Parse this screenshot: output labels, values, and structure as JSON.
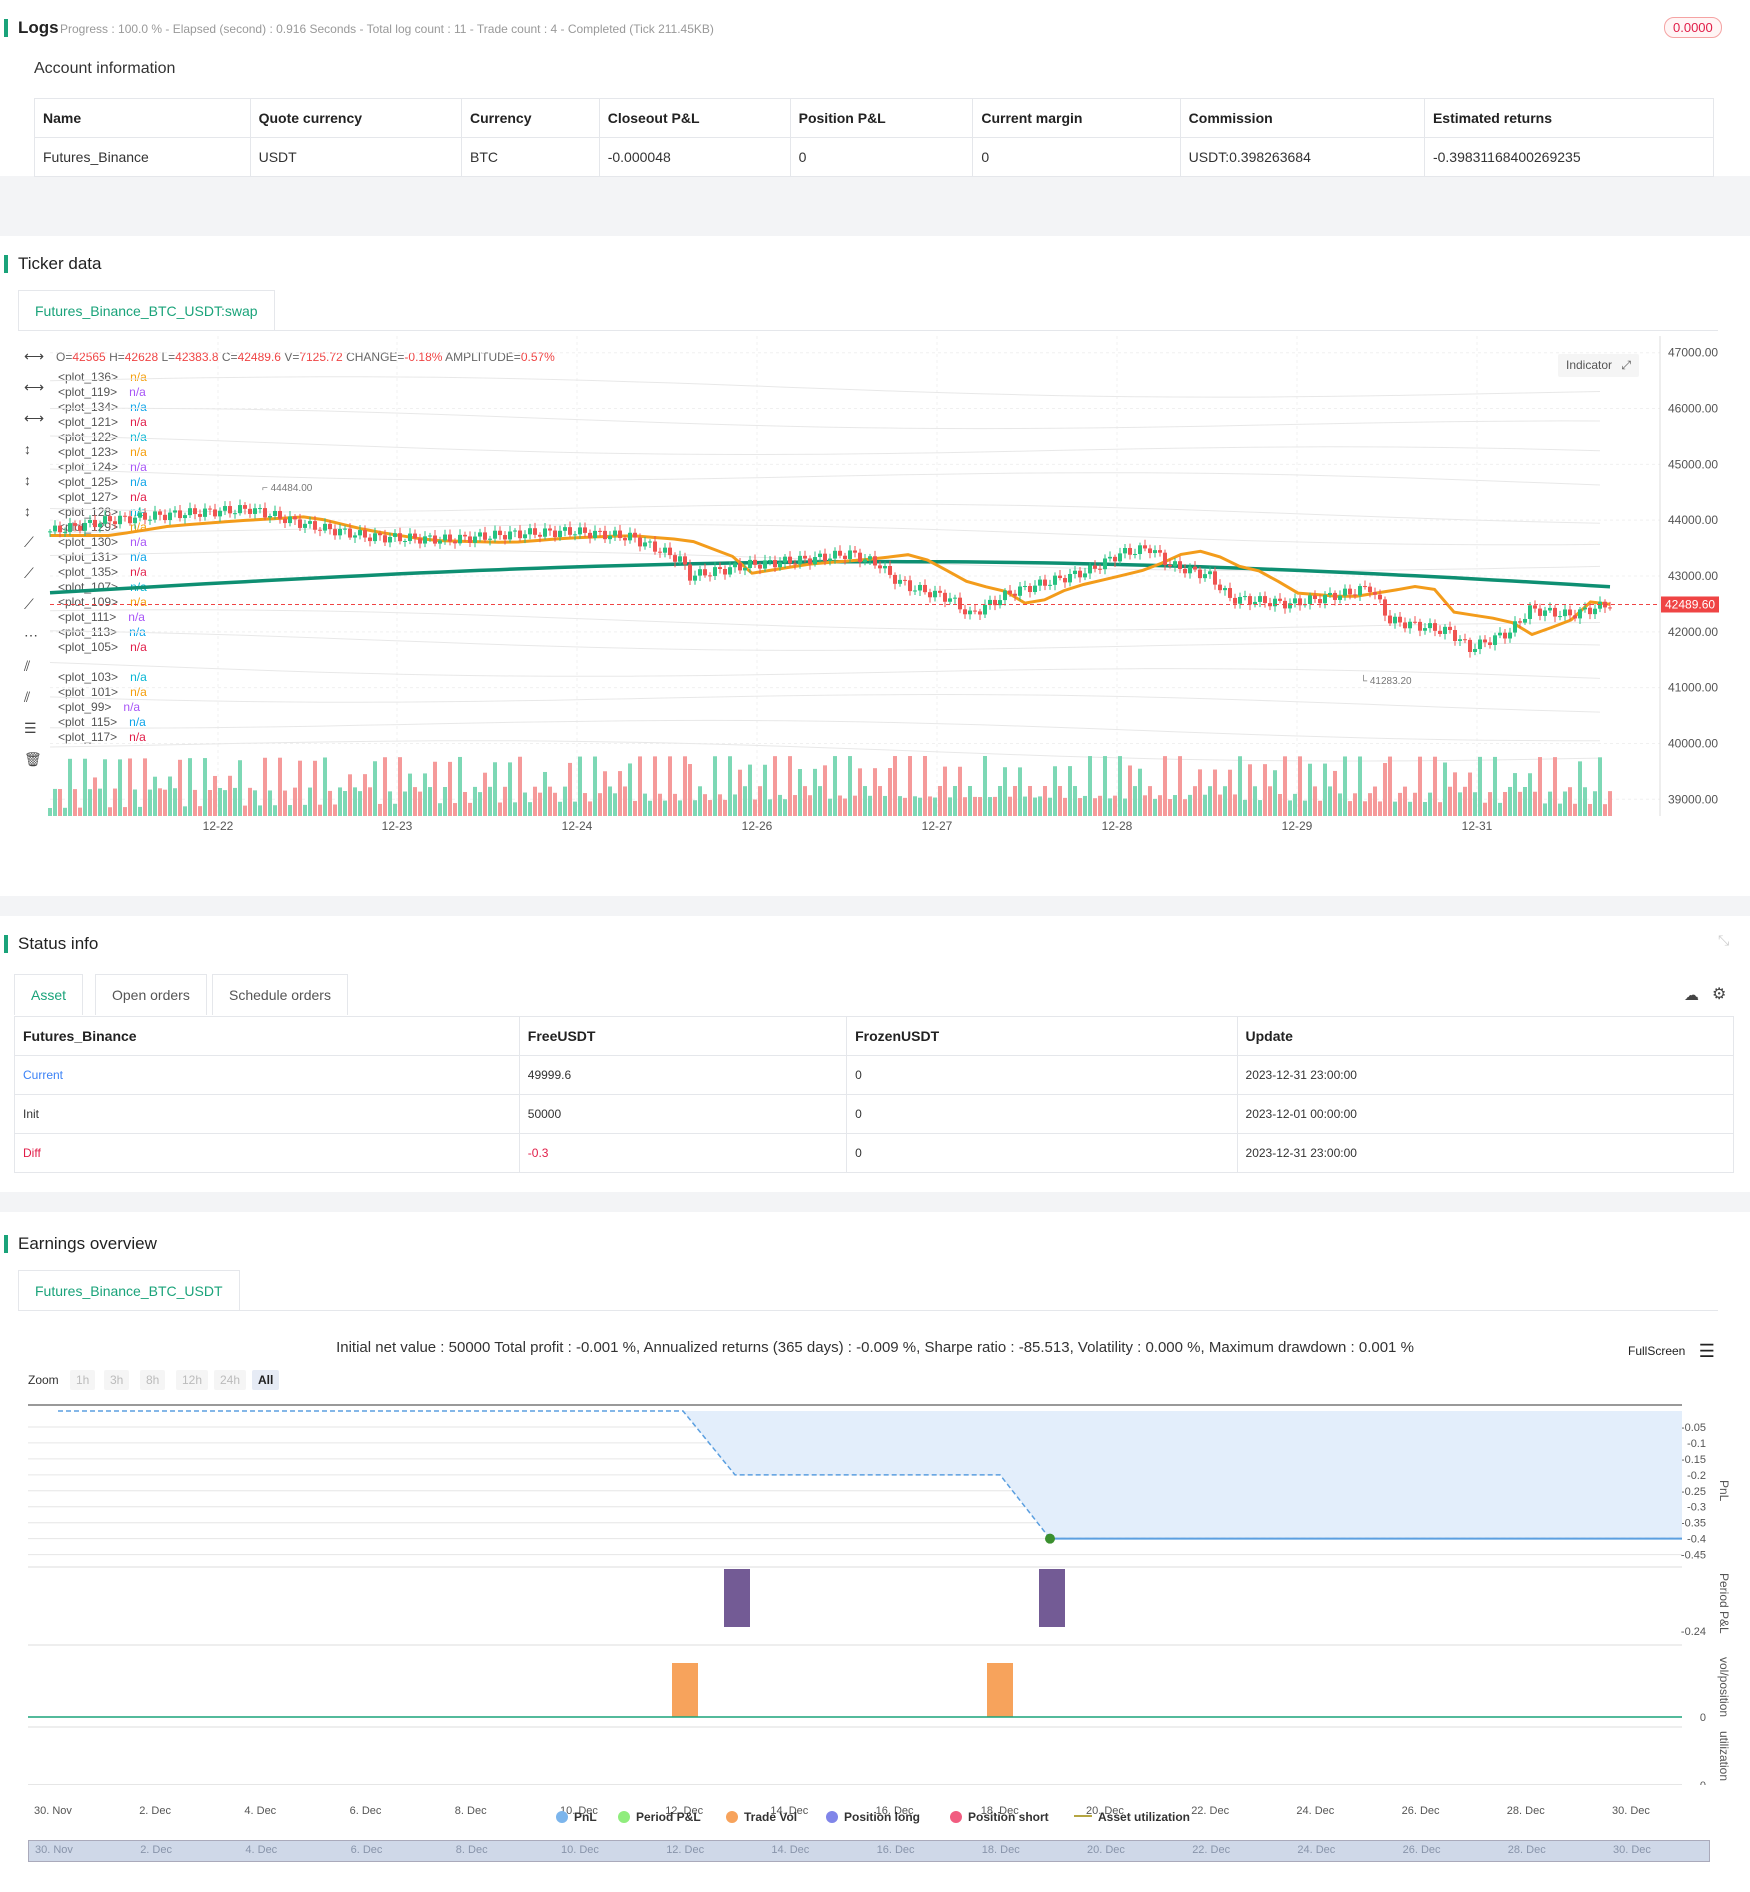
{
  "logs": {
    "title": "Logs",
    "summary": "Progress : 100.0 % - Elapsed (second) : 0.916  Seconds - Total log count : 11 - Trade count : 4 - Completed (Tick 211.45KB)",
    "badge": "0.0000",
    "account_title": "Account information",
    "columns": [
      "Name",
      "Quote currency",
      "Currency",
      "Closeout P&L",
      "Position P&L",
      "Current margin",
      "Commission",
      "Estimated returns"
    ],
    "row": [
      "Futures_Binance",
      "USDT",
      "BTC",
      "-0.000048",
      "0",
      "0",
      "USDT:0.398263684",
      "-0.39831168400269235"
    ]
  },
  "ticker": {
    "title": "Ticker data",
    "tab": "Futures_Binance_BTC_USDT:swap",
    "ohlc": {
      "o_label": "O=",
      "o": "42565",
      "h_label": "H=",
      "h": "42628",
      "l_label": "L=",
      "l": "42383.8",
      "c_label": "C=",
      "c": "42489.6",
      "v_label": "V=",
      "v": "7125.72",
      "change_label": "CHANGE=",
      "change": "-0.18%",
      "amp_label": "AMPLITUDE=",
      "amp": "0.57%"
    },
    "indicator_btn": "Indicator",
    "plots": [
      "<plot_136>",
      "<plot_119>",
      "<plot_134>",
      "<plot_121>",
      "<plot_122>",
      "<plot_123>",
      "<plot_124>",
      "<plot_125>",
      "<plot_127>",
      "<plot_128>",
      "<plot_129>",
      "<plot_130>",
      "<plot_131>",
      "<plot_135>",
      "<plot_107>",
      "<plot_109>",
      "<plot_111>",
      "<plot_113>",
      "<plot_105>",
      "<plot_103>",
      "<plot_101>",
      "<plot_99>",
      "<plot_115>",
      "<plot_117>"
    ],
    "plot_value": "n/a",
    "plot_value_colors": [
      "#f59e0b",
      "#a855f7",
      "#0ea5e9",
      "#e11d48",
      "#06b6d4",
      "#f59e0b",
      "#a855f7",
      "#0ea5e9",
      "#e11d48",
      "#06b6d4",
      "#f59e0b",
      "#a855f7",
      "#0ea5e9",
      "#e11d48",
      "#06b6d4",
      "#f59e0b",
      "#a855f7",
      "#0ea5e9",
      "#e11d48",
      "#06b6d4",
      "#f59e0b",
      "#a855f7",
      "#0ea5e9",
      "#e11d48"
    ],
    "y_ticks": [
      "47000.00",
      "46000.00",
      "45000.00",
      "44000.00",
      "43000.00",
      "42000.00",
      "41000.00",
      "40000.00",
      "39000.00"
    ],
    "x_ticks": [
      "12-22",
      "12-23",
      "12-24",
      "12-26",
      "12-27",
      "12-28",
      "12-29",
      "12-31"
    ],
    "high_label": "44484.00",
    "low_label": "41283.20",
    "last_price": "42489.60"
  },
  "status": {
    "title": "Status info",
    "tabs": [
      "Asset",
      "Open orders",
      "Schedule orders"
    ],
    "columns": [
      "Futures_Binance",
      "FreeUSDT",
      "FrozenUSDT",
      "Update"
    ],
    "rows": [
      [
        "Current",
        "49999.6",
        "0",
        "2023-12-31 23:00:00"
      ],
      [
        "Init",
        "50000",
        "0",
        "2023-12-01 00:00:00"
      ],
      [
        "Diff",
        "-0.3",
        "0",
        "2023-12-31 23:00:00"
      ]
    ]
  },
  "earnings": {
    "title": "Earnings overview",
    "tab": "Futures_Binance_BTC_USDT",
    "summary": "Initial net value : 50000 Total profit : -0.001 %, Annualized returns (365 days) : -0.009 %, Sharpe ratio : -85.513, Volatility : 0.000 %, Maximum drawdown : 0.001 %",
    "fullscreen": "FullScreen",
    "zoom_label": "Zoom",
    "zoom_options": [
      "1h",
      "3h",
      "8h",
      "12h",
      "24h",
      "All"
    ],
    "pnl_ticks": [
      "-0.05",
      "-0.1",
      "-0.15",
      "-0.2",
      "-0.25",
      "-0.3",
      "-0.35",
      "-0.4",
      "-0.45"
    ],
    "period_tick": "-0.24",
    "vol_tick": "0",
    "util_tick": "0",
    "axis_titles": [
      "PnL",
      "Period P&L",
      "vol/position",
      "utilization"
    ],
    "x_ticks": [
      "30. Nov",
      "2. Dec",
      "4. Dec",
      "6. Dec",
      "8. Dec",
      "10. Dec",
      "12. Dec",
      "14. Dec",
      "16. Dec",
      "18. Dec",
      "20. Dec",
      "22. Dec",
      "24. Dec",
      "26. Dec",
      "28. Dec",
      "30. Dec"
    ],
    "legend": [
      {
        "label": "PnL",
        "color": "#7cb5ec"
      },
      {
        "label": "Period P&L",
        "color": "#90ed7d"
      },
      {
        "label": "Trade Vol",
        "color": "#f7a35c"
      },
      {
        "label": "Position long",
        "color": "#8085e9"
      },
      {
        "label": "Position short",
        "color": "#f15c80"
      },
      {
        "label": "Asset utilization",
        "color": "#b5a642"
      }
    ]
  }
}
